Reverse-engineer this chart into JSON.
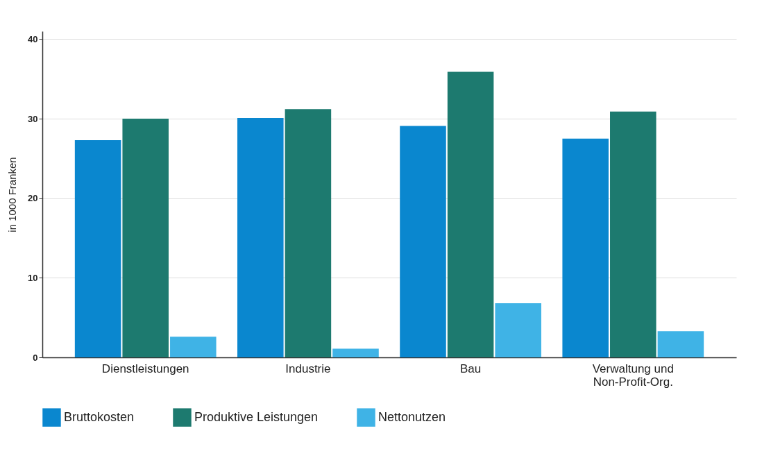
{
  "chart_data": {
    "type": "bar",
    "ylabel": "in 1000 Franken",
    "categories": [
      "Dienstleistungen",
      "Industrie",
      "Bau",
      "Verwaltung und\nNon-Profit-Org."
    ],
    "series": [
      {
        "name": "Bruttokosten",
        "color": "#0a87cf",
        "values": [
          27.3,
          30.1,
          29.1,
          27.5
        ]
      },
      {
        "name": "Produktive Leistungen",
        "color": "#1d7a6f",
        "values": [
          30.0,
          31.2,
          35.9,
          30.9
        ]
      },
      {
        "name": "Nettonutzen",
        "color": "#3fb3e6",
        "values": [
          2.6,
          1.1,
          6.8,
          3.3
        ]
      }
    ],
    "ylim": [
      0,
      41
    ],
    "yticks": [
      0,
      10,
      20,
      30,
      40
    ],
    "grid": "y",
    "legend": "bottom"
  }
}
